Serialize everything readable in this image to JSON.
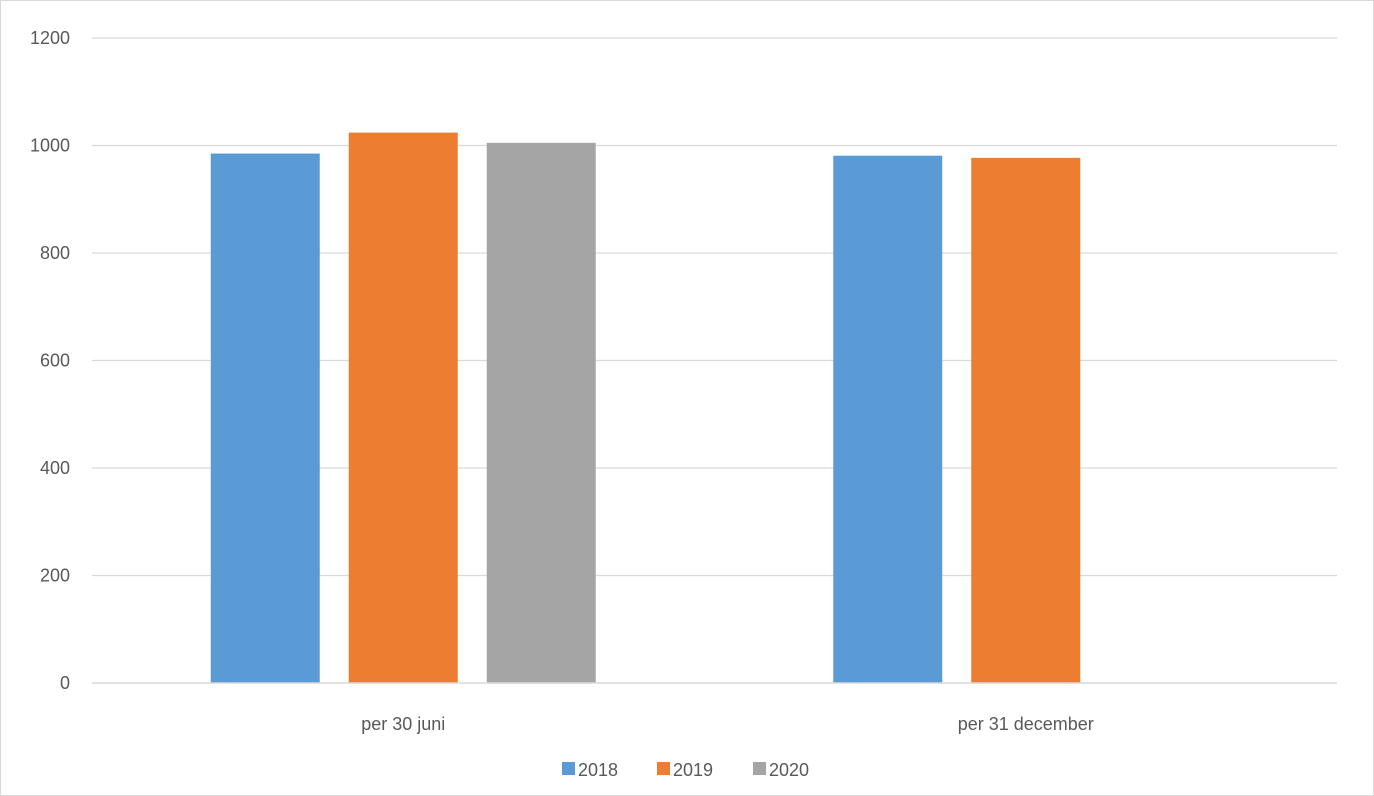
{
  "chart_data": {
    "type": "bar",
    "title": "",
    "xlabel": "",
    "ylabel": "",
    "categories": [
      "per 30 juni",
      "per 31 december"
    ],
    "series": [
      {
        "name": "2018",
        "color": "#5b9bd5",
        "values": [
          985,
          981
        ]
      },
      {
        "name": "2019",
        "color": "#ed7d31",
        "values": [
          1024,
          977
        ]
      },
      {
        "name": "2020",
        "color": "#a5a5a5",
        "values": [
          1005,
          null
        ]
      }
    ],
    "ylim": [
      0,
      1200
    ],
    "yticks": [
      0,
      200,
      400,
      600,
      800,
      1000,
      1200
    ],
    "grid": true,
    "legend": "bottom"
  }
}
